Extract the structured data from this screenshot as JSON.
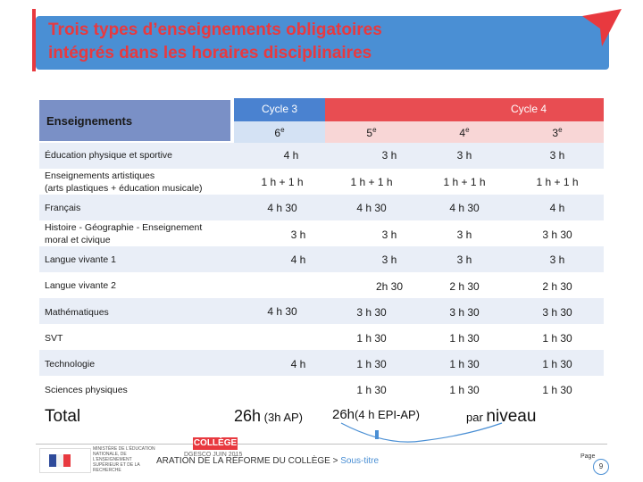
{
  "title": {
    "line1": "Trois types d’enseignements obligatoires",
    "line2": "intégrés dans les horaires disciplinaires"
  },
  "header": {
    "enseignements": "Enseignements",
    "cycle3": "Cycle 3",
    "cycle4": "Cycle 4",
    "g6": "6",
    "g5": "5",
    "g4": "4",
    "g3": "3",
    "sup": "e"
  },
  "rows": [
    {
      "label": "Éducation physique et sportive",
      "c6": "4 h",
      "c5": "3 h",
      "c4": "3 h",
      "c3": "3 h"
    },
    {
      "label": "Enseignements artistiques",
      "label2": "(arts plastiques + éducation musicale)",
      "c6": "1 h + 1 h",
      "c5": "1 h + 1 h",
      "c4": "1 h + 1 h",
      "c3": "1 h + 1 h"
    },
    {
      "label": "Français",
      "c6": "4 h 30",
      "c5": "4 h 30",
      "c4": "4 h 30",
      "c3": "4 h"
    },
    {
      "label": "Histoire - Géographie - Enseignement",
      "label2": "moral et civique",
      "c6": "3 h",
      "c5": "3 h",
      "c4": "3 h",
      "c3": "3 h 30"
    },
    {
      "label": "Langue vivante 1",
      "c6": "4 h",
      "c5": "3 h",
      "c4": "3 h",
      "c3": "3 h"
    },
    {
      "label": "Langue vivante 2",
      "c5": "2h 30",
      "c4": "2 h 30",
      "c3": "2 h 30"
    },
    {
      "label": "Mathématiques",
      "c6": "4 h 30",
      "c5": "3 h 30",
      "c4": "3 h 30",
      "c3": "3 h 30"
    },
    {
      "label": "SVT",
      "c5": "1 h 30",
      "c4": "1 h 30",
      "c3": "1 h 30"
    },
    {
      "label": "Technologie",
      "c6": "4 h",
      "c5": "1 h 30",
      "c4": "1 h 30",
      "c3": "1 h 30"
    },
    {
      "label": "Sciences physiques",
      "c5": "1 h 30",
      "c4": "1 h 30",
      "c3": "1 h 30"
    }
  ],
  "totals": {
    "label": "Total",
    "cycle3_main": "26h",
    "cycle3_note": " (3h AP)",
    "cycle4_main": "26h",
    "cycle4_note": "(4 h EPI-AP)",
    "par": "par ",
    "niveau": "niveau"
  },
  "footer": {
    "college": "COLLÈGE",
    "ministere": "MINISTÈRE DE L’ÉDUCATION NATIONALE, DE L’ENSEIGNEMENT SUPÉRIEUR ET DE LA RECHERCHE",
    "date": "DGESCO JUIN 2015",
    "text": "ARATION DE LA RÉFORME DU COLLÈGE > ",
    "subtitle": "Sous-titre",
    "page_label": "Page",
    "page_number": "9"
  },
  "colors": {
    "title_bg": "#4a8fd4",
    "title_text": "#e8393f",
    "cycle3": "#4a82d0",
    "cycle4": "#e84d52"
  }
}
